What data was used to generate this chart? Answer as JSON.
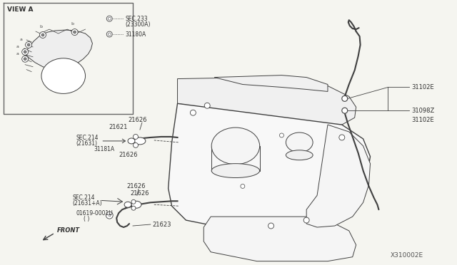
{
  "bg_color": "#f5f5f0",
  "line_color": "#404040",
  "text_color": "#303030",
  "diagram_id": "X310002E",
  "parts": {
    "31102E": "31102E",
    "31098Z": "31098Z",
    "21626": "21626",
    "21621": "21621",
    "SEC214_1": "SEC.214\n(21631)",
    "31181A": "31181A",
    "SEC214_2": "SEC.214\n(21631+A)",
    "01619": "01619-0001U\n( )",
    "21623": "21623"
  },
  "view_a_label": "VIEW A",
  "legend_1_label": "SEC.233\n(23300A)",
  "legend_2_label": "31180A",
  "front_label": "FRONT"
}
